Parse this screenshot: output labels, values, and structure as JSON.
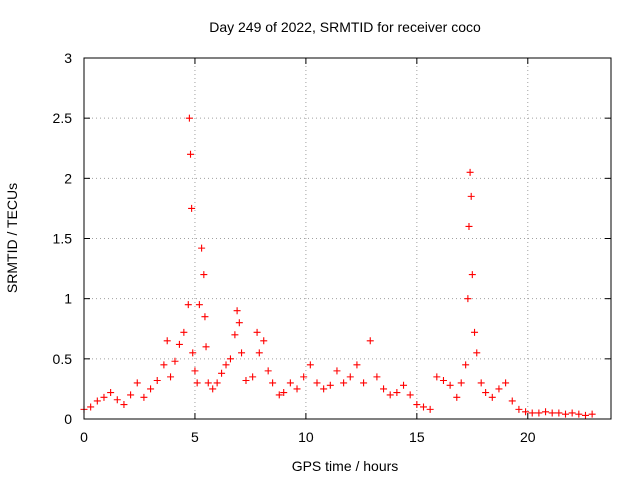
{
  "chart_data": {
    "type": "scatter",
    "title": "Day 249 of 2022, SRMTID for receiver coco",
    "xlabel": "GPS time / hours",
    "ylabel": "SRMTID / TECUs",
    "xlim": [
      0,
      23.75
    ],
    "ylim": [
      0,
      3
    ],
    "x_ticks": [
      0,
      5,
      10,
      15,
      20
    ],
    "x_tick_labels": [
      "0",
      "5",
      "10",
      "15",
      "20"
    ],
    "y_ticks": [
      0,
      0.5,
      1,
      1.5,
      2,
      2.5,
      3
    ],
    "y_tick_labels": [
      "0",
      "0.5",
      "1",
      "1.5",
      "2",
      "2.5",
      "3"
    ],
    "grid": true,
    "marker": "+",
    "series": [
      {
        "name": "SRMTID",
        "color": "#ff0000",
        "x": [
          0.0,
          0.3,
          0.6,
          0.9,
          1.2,
          1.5,
          1.8,
          2.1,
          2.4,
          2.7,
          3.0,
          3.3,
          3.6,
          3.75,
          3.9,
          4.1,
          4.3,
          4.5,
          4.7,
          4.75,
          4.8,
          4.85,
          4.9,
          5.0,
          5.1,
          5.2,
          5.3,
          5.4,
          5.45,
          5.5,
          5.6,
          5.8,
          6.0,
          6.2,
          6.4,
          6.6,
          6.8,
          6.9,
          7.0,
          7.1,
          7.3,
          7.6,
          7.8,
          7.9,
          8.1,
          8.3,
          8.5,
          8.8,
          9.0,
          9.3,
          9.6,
          9.9,
          10.2,
          10.5,
          10.8,
          11.1,
          11.4,
          11.7,
          12.0,
          12.3,
          12.6,
          12.9,
          13.2,
          13.5,
          13.8,
          14.1,
          14.4,
          14.7,
          15.0,
          15.3,
          15.6,
          15.9,
          16.2,
          16.5,
          16.8,
          17.0,
          17.2,
          17.3,
          17.35,
          17.4,
          17.45,
          17.5,
          17.6,
          17.7,
          17.9,
          18.1,
          18.4,
          18.7,
          19.0,
          19.3,
          19.6,
          19.9,
          20.2,
          20.5,
          20.8,
          21.1,
          21.4,
          21.7,
          22.0,
          22.3,
          22.6,
          22.9
        ],
        "values": [
          0.08,
          0.1,
          0.15,
          0.18,
          0.22,
          0.16,
          0.12,
          0.2,
          0.3,
          0.18,
          0.25,
          0.32,
          0.45,
          0.65,
          0.35,
          0.48,
          0.62,
          0.72,
          0.95,
          2.5,
          2.2,
          1.75,
          0.55,
          0.4,
          0.3,
          0.95,
          1.42,
          1.2,
          0.85,
          0.6,
          0.3,
          0.25,
          0.3,
          0.38,
          0.45,
          0.5,
          0.7,
          0.9,
          0.8,
          0.55,
          0.32,
          0.35,
          0.72,
          0.55,
          0.65,
          0.4,
          0.3,
          0.2,
          0.22,
          0.3,
          0.25,
          0.35,
          0.45,
          0.3,
          0.25,
          0.28,
          0.4,
          0.3,
          0.35,
          0.45,
          0.3,
          0.65,
          0.35,
          0.25,
          0.2,
          0.22,
          0.28,
          0.2,
          0.12,
          0.1,
          0.08,
          0.35,
          0.32,
          0.28,
          0.18,
          0.3,
          0.45,
          1.0,
          1.6,
          2.05,
          1.85,
          1.2,
          0.72,
          0.55,
          0.3,
          0.22,
          0.18,
          0.25,
          0.3,
          0.15,
          0.08,
          0.06,
          0.05,
          0.05,
          0.06,
          0.05,
          0.05,
          0.04,
          0.05,
          0.04,
          0.03,
          0.04
        ]
      }
    ]
  }
}
